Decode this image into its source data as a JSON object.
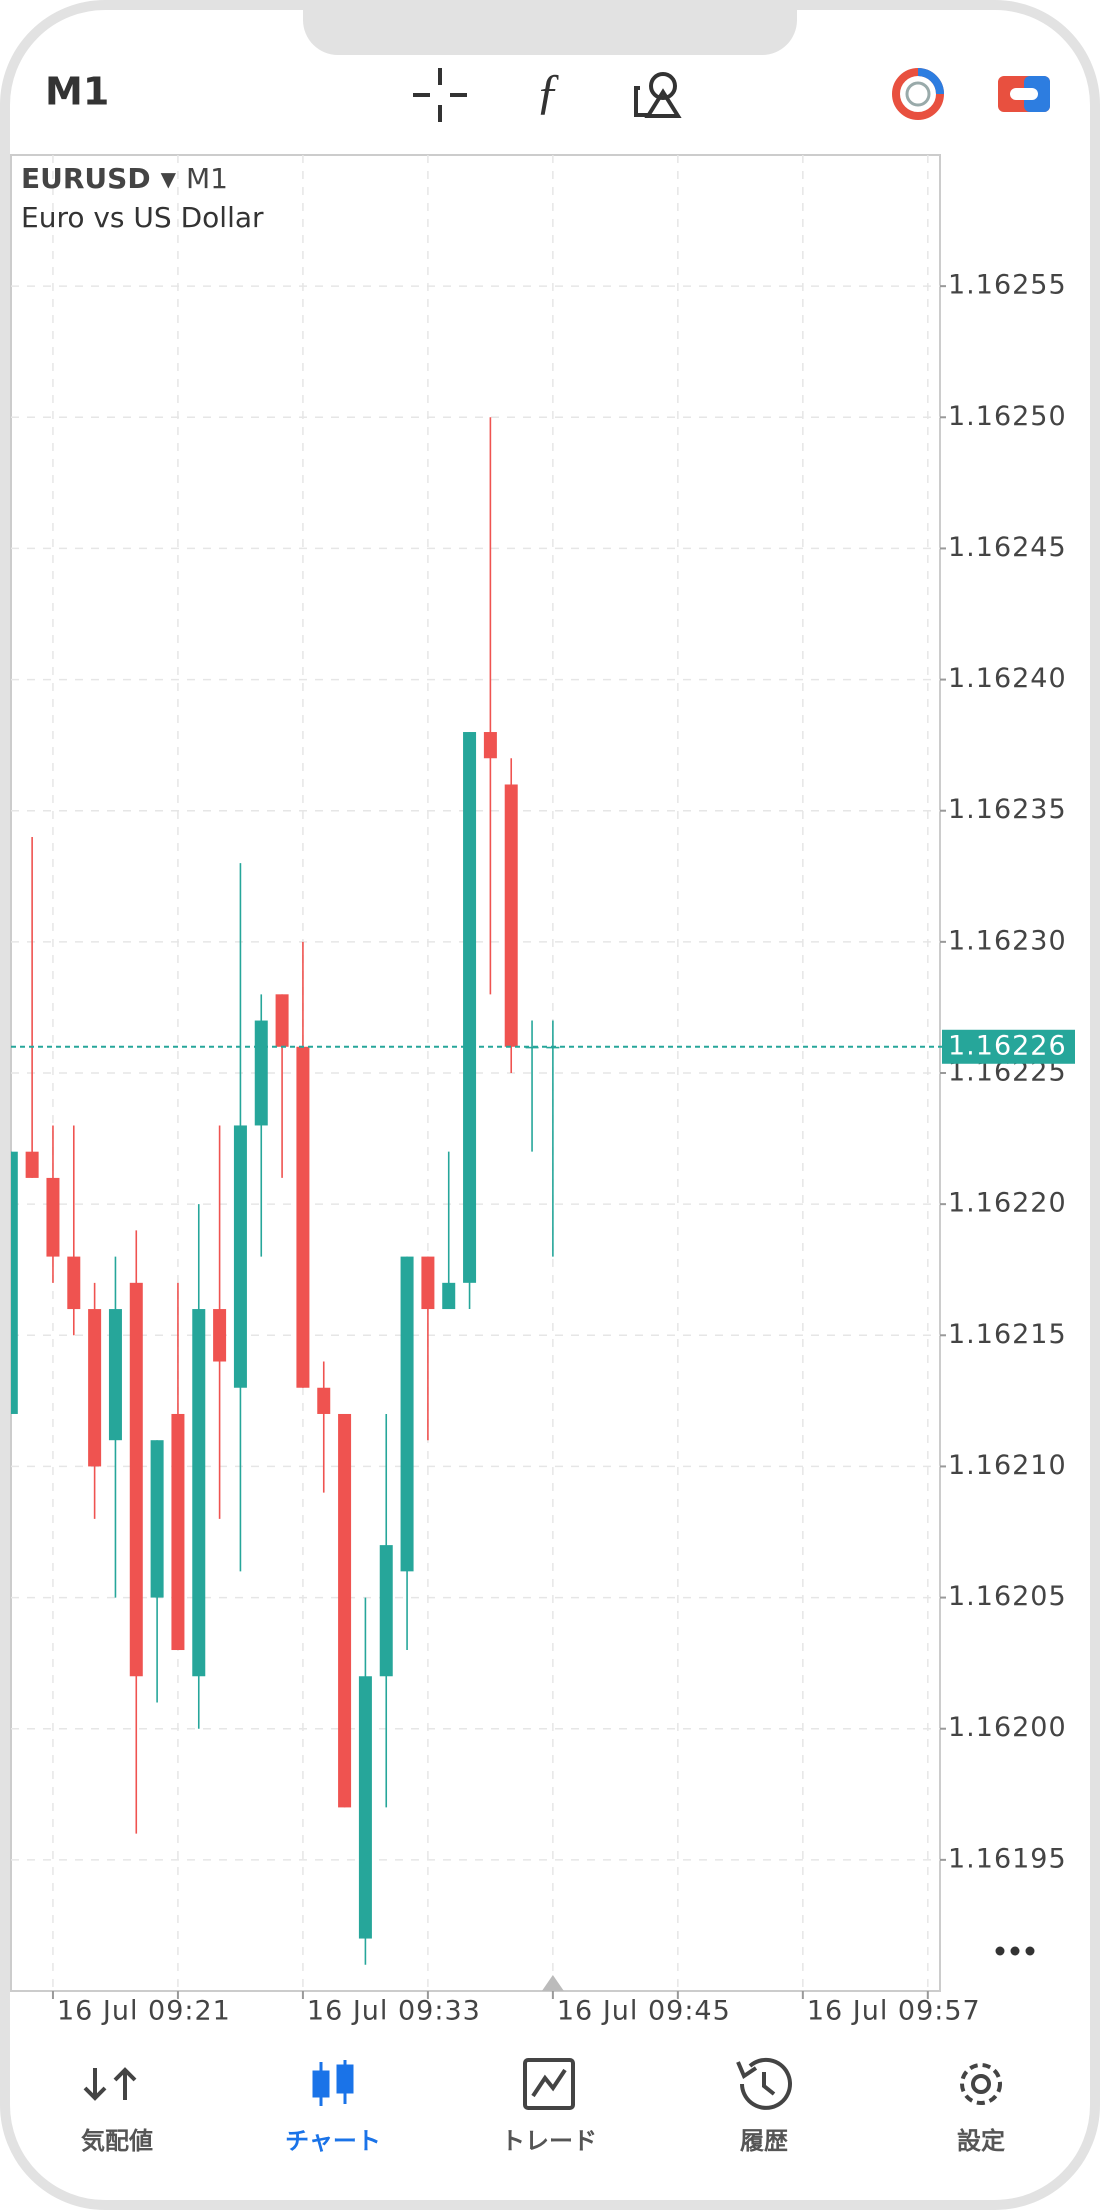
{
  "header": {
    "timeframe": "M1"
  },
  "chart_data": {
    "type": "candlestick",
    "title": "EURUSD",
    "timeframe": "M1",
    "subtitle": "Euro vs US Dollar",
    "categories": [
      null,
      null,
      "16 Jul 09:21",
      null,
      null,
      null,
      null,
      null,
      null,
      null,
      null,
      null,
      null,
      null,
      "16 Jul 09:33",
      null,
      null,
      null,
      null,
      null,
      null,
      null,
      null,
      null,
      null,
      null,
      "16 Jul 09:45",
      null,
      null,
      null,
      null,
      null,
      null,
      null,
      null,
      null,
      null,
      null,
      "16 Jul 09:57",
      null,
      null,
      null,
      null,
      null,
      null
    ],
    "series": [
      {
        "name": "open",
        "values": [
          1.16212,
          1.16222,
          1.16221,
          1.16218,
          1.16216,
          1.16211,
          1.16217,
          1.16205,
          1.16212,
          1.16202,
          1.16216,
          1.16213,
          1.16223,
          1.16228,
          1.16226,
          1.16213,
          1.16212,
          1.16192,
          1.16202,
          1.16206,
          1.16218,
          1.16216,
          1.16217,
          1.16238,
          1.16236,
          1.16226,
          1.16226,
          null,
          null,
          null,
          null,
          null,
          null,
          null,
          null,
          null,
          null,
          null,
          null,
          null,
          null,
          null,
          null,
          null,
          null
        ]
      },
      {
        "name": "high",
        "values": [
          1.16222,
          1.16234,
          1.16223,
          1.16223,
          1.16217,
          1.16218,
          1.16219,
          1.16211,
          1.16217,
          1.1622,
          1.16223,
          1.16233,
          1.16228,
          1.16228,
          1.1623,
          1.16214,
          1.16212,
          1.16205,
          1.16212,
          1.16218,
          1.16218,
          1.16222,
          1.16238,
          1.1625,
          1.16237,
          1.16227,
          1.16227,
          null,
          null,
          null,
          null,
          null,
          null,
          null,
          null,
          null,
          null,
          null,
          null,
          null,
          null,
          null,
          null,
          null,
          null
        ]
      },
      {
        "name": "low",
        "values": [
          1.16212,
          1.16221,
          1.16217,
          1.16215,
          1.16208,
          1.16205,
          1.16196,
          1.16201,
          1.16203,
          1.162,
          1.16208,
          1.16206,
          1.16218,
          1.16221,
          1.16213,
          1.16209,
          1.16197,
          1.16191,
          1.16197,
          1.16203,
          1.16211,
          1.16216,
          1.16216,
          1.16228,
          1.16225,
          1.16222,
          1.16218,
          null,
          null,
          null,
          null,
          null,
          null,
          null,
          null,
          null,
          null,
          null,
          null,
          null,
          null,
          null,
          null,
          null,
          null
        ]
      },
      {
        "name": "close",
        "values": [
          1.16222,
          1.16221,
          1.16218,
          1.16216,
          1.1621,
          1.16216,
          1.16202,
          1.16211,
          1.16203,
          1.16216,
          1.16214,
          1.16223,
          1.16227,
          1.16226,
          1.16213,
          1.16212,
          1.16197,
          1.16202,
          1.16207,
          1.16218,
          1.16216,
          1.16217,
          1.16238,
          1.16237,
          1.16226,
          1.16226,
          1.16226,
          null,
          null,
          null,
          null,
          null,
          null,
          null,
          null,
          null,
          null,
          null,
          null,
          null,
          null,
          null,
          null,
          null,
          null
        ]
      }
    ],
    "up_color": "#26a69a",
    "down_color": "#ef5350",
    "current_price": 1.16226,
    "ylim": [
      1.1619,
      1.1626
    ],
    "yticks": [
      1.16195,
      {
        "value": 1.162,
        "label": "1.16200"
      },
      1.16205,
      {
        "value": 1.1621,
        "label": "1.16210"
      },
      1.16215,
      {
        "value": 1.1622,
        "label": "1.16220"
      },
      1.16225,
      {
        "value": 1.1623,
        "label": "1.16230"
      },
      1.16235,
      {
        "value": 1.1624,
        "label": "1.16240"
      },
      1.16245,
      {
        "value": 1.1625,
        "label": "1.16250"
      },
      1.16255
    ],
    "grid": true
  },
  "nav": [
    {
      "label": "気配値"
    },
    {
      "label": "チャート",
      "active": true
    },
    {
      "label": "トレード"
    },
    {
      "label": "履歴"
    },
    {
      "label": "設定"
    }
  ]
}
